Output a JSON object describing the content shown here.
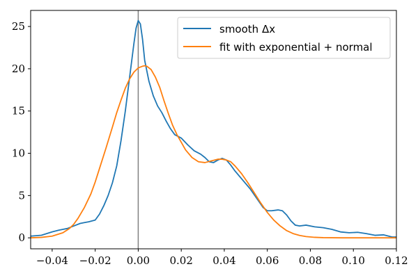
{
  "chart_data": {
    "type": "line",
    "title": "",
    "xlabel": "",
    "ylabel": "",
    "xlim": [
      -0.05,
      0.12
    ],
    "ylim": [
      -1.3,
      26.9
    ],
    "xticks": [
      -0.04,
      -0.02,
      0.0,
      0.02,
      0.04,
      0.06,
      0.08,
      0.1,
      0.12
    ],
    "xtick_labels": [
      "−0.04",
      "−0.02",
      "0.00",
      "0.02",
      "0.04",
      "0.06",
      "0.08",
      "0.10",
      "0.12"
    ],
    "yticks": [
      0,
      5,
      10,
      15,
      20,
      25
    ],
    "ytick_labels": [
      "0",
      "5",
      "10",
      "15",
      "20",
      "25"
    ],
    "grid": false,
    "legend_position": "top-right",
    "vline": {
      "x": 0.0,
      "color": "#808080"
    },
    "series": [
      {
        "name": "smooth Δx",
        "color": "#1f77b4",
        "x": [
          -0.05,
          -0.045,
          -0.04,
          -0.037,
          -0.035,
          -0.033,
          -0.03,
          -0.027,
          -0.025,
          -0.023,
          -0.02,
          -0.018,
          -0.016,
          -0.014,
          -0.012,
          -0.01,
          -0.008,
          -0.006,
          -0.004,
          -0.002,
          -0.001,
          0.0,
          0.001,
          0.002,
          0.003,
          0.005,
          0.007,
          0.009,
          0.011,
          0.013,
          0.015,
          0.017,
          0.02,
          0.023,
          0.026,
          0.029,
          0.031,
          0.033,
          0.035,
          0.037,
          0.039,
          0.041,
          0.043,
          0.045,
          0.048,
          0.052,
          0.055,
          0.058,
          0.06,
          0.062,
          0.065,
          0.067,
          0.069,
          0.071,
          0.073,
          0.075,
          0.078,
          0.082,
          0.086,
          0.09,
          0.094,
          0.098,
          0.102,
          0.106,
          0.11,
          0.114,
          0.118,
          0.12
        ],
        "y": [
          0.2,
          0.3,
          0.7,
          0.9,
          1.0,
          1.1,
          1.4,
          1.7,
          1.8,
          1.9,
          2.1,
          2.8,
          3.8,
          5.0,
          6.5,
          8.5,
          11.5,
          15.0,
          19.0,
          23.0,
          24.8,
          25.7,
          25.3,
          23.5,
          21.0,
          18.5,
          16.8,
          15.6,
          14.8,
          13.8,
          12.9,
          12.2,
          11.8,
          11.0,
          10.3,
          9.9,
          9.5,
          9.0,
          8.9,
          9.2,
          9.4,
          9.2,
          8.6,
          7.9,
          7.0,
          5.8,
          4.7,
          3.6,
          3.2,
          3.2,
          3.3,
          3.2,
          2.7,
          2.0,
          1.5,
          1.4,
          1.5,
          1.3,
          1.2,
          1.0,
          0.7,
          0.6,
          0.65,
          0.5,
          0.3,
          0.35,
          0.1,
          0.1
        ]
      },
      {
        "name": "fit with exponential + normal",
        "color": "#ff7f0e",
        "x": [
          -0.05,
          -0.045,
          -0.04,
          -0.035,
          -0.032,
          -0.03,
          -0.028,
          -0.025,
          -0.022,
          -0.02,
          -0.018,
          -0.015,
          -0.012,
          -0.01,
          -0.008,
          -0.006,
          -0.004,
          -0.002,
          0.0,
          0.002,
          0.003,
          0.004,
          0.006,
          0.008,
          0.01,
          0.012,
          0.014,
          0.016,
          0.018,
          0.02,
          0.022,
          0.025,
          0.028,
          0.031,
          0.034,
          0.037,
          0.039,
          0.041,
          0.043,
          0.045,
          0.048,
          0.051,
          0.054,
          0.057,
          0.06,
          0.063,
          0.066,
          0.069,
          0.072,
          0.075,
          0.078,
          0.082,
          0.086,
          0.09,
          0.095,
          0.1,
          0.11,
          0.12
        ],
        "y": [
          0.0,
          0.05,
          0.2,
          0.6,
          1.1,
          1.6,
          2.3,
          3.6,
          5.2,
          6.6,
          8.2,
          10.6,
          13.1,
          14.8,
          16.3,
          17.7,
          18.8,
          19.6,
          20.1,
          20.3,
          20.35,
          20.3,
          19.9,
          19.0,
          17.8,
          16.2,
          14.7,
          13.3,
          12.2,
          11.3,
          10.4,
          9.5,
          9.0,
          8.9,
          9.1,
          9.3,
          9.3,
          9.2,
          9.0,
          8.5,
          7.6,
          6.5,
          5.3,
          4.1,
          3.0,
          2.1,
          1.4,
          0.85,
          0.5,
          0.28,
          0.15,
          0.06,
          0.02,
          0.01,
          0.0,
          0.0,
          0.0,
          0.0
        ]
      }
    ]
  }
}
